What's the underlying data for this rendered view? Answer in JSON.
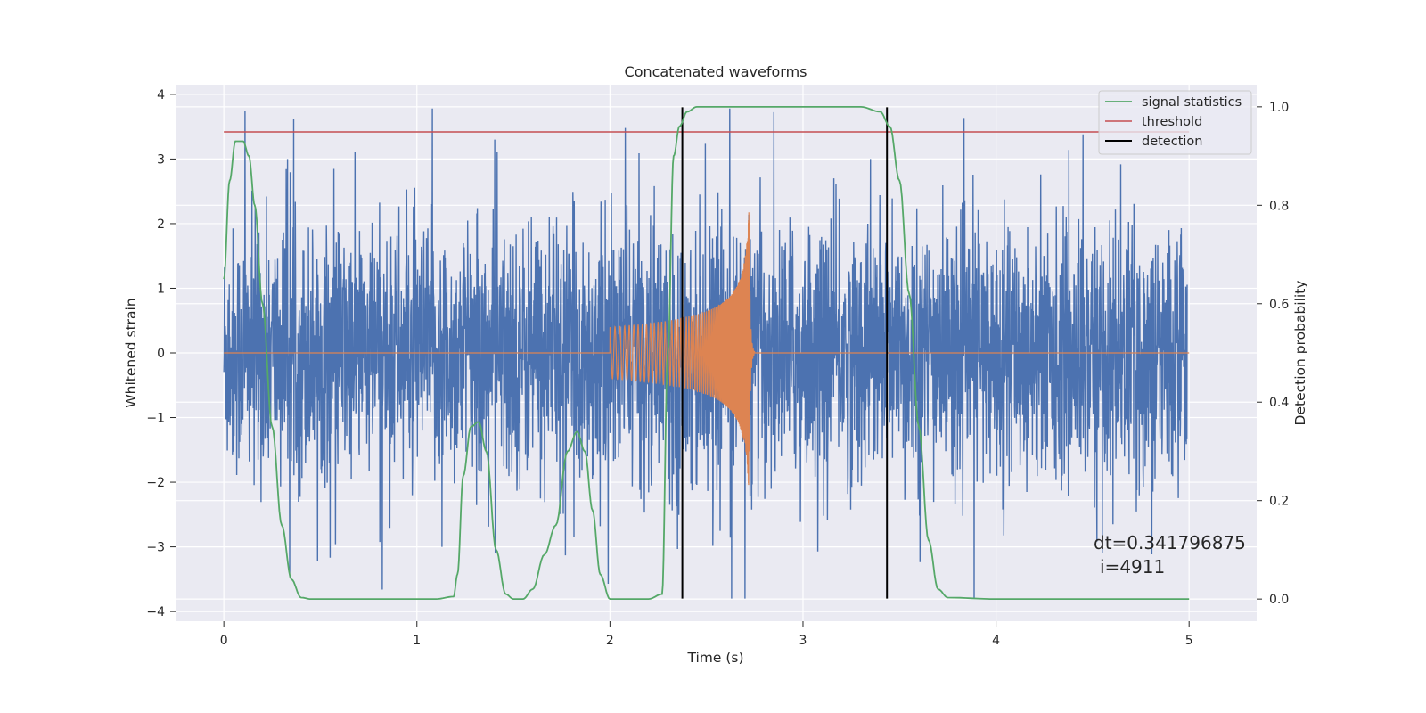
{
  "chart_data": {
    "type": "line",
    "title": "Concatenated waveforms",
    "xlabel": "Time (s)",
    "ylabel_left": "Whitened strain",
    "ylabel_right": "Detection probability",
    "xlim": [
      -0.25,
      5.35
    ],
    "ylim_left": [
      -4.15,
      4.15
    ],
    "ylim_right": [
      -0.045,
      1.045
    ],
    "x_ticks": [
      0,
      1,
      2,
      3,
      4,
      5
    ],
    "x_tick_labels": [
      "0",
      "1",
      "2",
      "3",
      "4",
      "5"
    ],
    "y_left_ticks": [
      -4,
      -3,
      -2,
      -1,
      0,
      1,
      2,
      3,
      4
    ],
    "y_left_tick_labels": [
      "−4",
      "−3",
      "−2",
      "−1",
      "0",
      "1",
      "2",
      "3",
      "4"
    ],
    "y_right_ticks": [
      0.0,
      0.2,
      0.4,
      0.6,
      0.8,
      1.0
    ],
    "y_right_tick_labels": [
      "0.0",
      "0.2",
      "0.4",
      "0.6",
      "0.8",
      "1.0"
    ],
    "grid": true,
    "legend_position": "top-right",
    "colors": {
      "strain": "#4c72b0",
      "injection": "#dd8452",
      "signal_statistics": "#55a868",
      "threshold": "#c44e52",
      "detection": "#000000",
      "plot_background": "#eaeaf2",
      "grid": "#ffffff"
    },
    "series": [
      {
        "name": "signal statistics",
        "axis": "right",
        "x": [
          0.0,
          0.03,
          0.06,
          0.1,
          0.13,
          0.16,
          0.2,
          0.25,
          0.3,
          0.35,
          0.4,
          0.45,
          0.5,
          0.8,
          1.1,
          1.19,
          1.21,
          1.24,
          1.28,
          1.32,
          1.36,
          1.41,
          1.46,
          1.5,
          1.55,
          1.6,
          1.66,
          1.72,
          1.78,
          1.83,
          1.87,
          1.91,
          1.95,
          2.0,
          2.2,
          2.27,
          2.3,
          2.33,
          2.36,
          2.4,
          2.45,
          2.55,
          3.0,
          3.3,
          3.4,
          3.45,
          3.5,
          3.55,
          3.6,
          3.65,
          3.7,
          3.75,
          4.0,
          4.5,
          5.0
        ],
        "y": [
          0.65,
          0.85,
          0.93,
          0.93,
          0.9,
          0.8,
          0.6,
          0.35,
          0.15,
          0.04,
          0.003,
          0.0,
          0.0,
          0.0,
          0.0,
          0.005,
          0.05,
          0.25,
          0.35,
          0.36,
          0.3,
          0.1,
          0.01,
          0.0,
          0.0,
          0.02,
          0.09,
          0.15,
          0.3,
          0.34,
          0.3,
          0.18,
          0.05,
          0.0,
          0.0,
          0.01,
          0.5,
          0.9,
          0.96,
          0.99,
          1.0,
          1.0,
          1.0,
          1.0,
          0.99,
          0.96,
          0.85,
          0.62,
          0.35,
          0.12,
          0.02,
          0.003,
          0.0,
          0.0,
          0.0
        ]
      },
      {
        "name": "threshold",
        "axis": "left",
        "x": [
          0.0,
          5.0
        ],
        "y": [
          3.42,
          3.42
        ]
      },
      {
        "name": "detection",
        "axis": "left",
        "type": "vlines",
        "x": [
          2.375,
          3.435
        ],
        "ymin": -3.8,
        "ymax": 3.8
      },
      {
        "axis": "left",
        "type": "noise",
        "x_range": [
          0.0,
          4.99
        ],
        "amplitude_range": [
          -3.8,
          3.8
        ],
        "peaks": [
          {
            "x": 0.11,
            "y": 3.75
          },
          {
            "x": 1.08,
            "y": 3.78
          },
          {
            "x": 2.62,
            "y": 3.78
          },
          {
            "x": 2.08,
            "y": 3.48
          },
          {
            "x": 4.45,
            "y": 3.38
          },
          {
            "x": 0.33,
            "y": 3.0
          },
          {
            "x": 3.35,
            "y": 3.0
          },
          {
            "x": 2.63,
            "y": -3.8
          },
          {
            "x": 2.7,
            "y": -3.8
          },
          {
            "x": 1.13,
            "y": -3.0
          },
          {
            "x": 4.55,
            "y": -3.1
          }
        ]
      },
      {
        "axis": "left",
        "type": "chirp",
        "x_range": [
          2.0,
          2.75
        ],
        "envelope_start": 0.4,
        "envelope_peak": 2.35,
        "peak_time": 2.72
      }
    ],
    "annotations": [
      "dt=0.341796875",
      "i=4911"
    ]
  }
}
